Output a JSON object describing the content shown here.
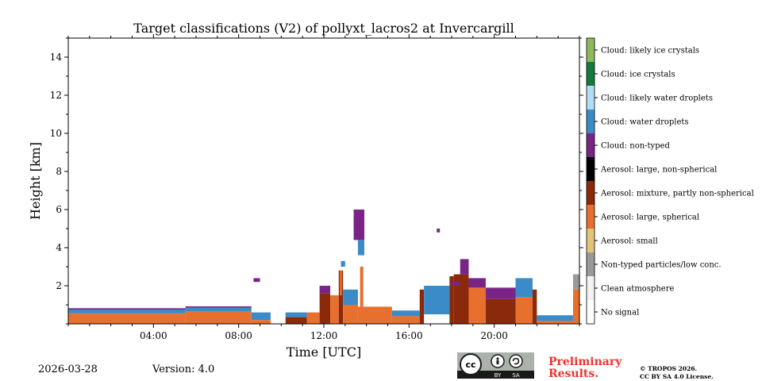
{
  "chart_data": {
    "type": "heatmap",
    "title": "Target classifications (V2) of pollyxt_lacros2 at Invercargill",
    "xlabel": "Time [UTC]",
    "ylabel": "Height [km]",
    "xlim_hours": [
      0,
      24
    ],
    "ylim_km": [
      0,
      15
    ],
    "x_ticks": [
      {
        "value": 4,
        "label": "04:00"
      },
      {
        "value": 8,
        "label": "08:00"
      },
      {
        "value": 12,
        "label": "12:00"
      },
      {
        "value": 16,
        "label": "16:00"
      },
      {
        "value": 20,
        "label": "20:00"
      }
    ],
    "y_ticks": [
      {
        "value": 2,
        "label": "2"
      },
      {
        "value": 4,
        "label": "4"
      },
      {
        "value": 6,
        "label": "6"
      },
      {
        "value": 8,
        "label": "8"
      },
      {
        "value": 10,
        "label": "10"
      },
      {
        "value": 12,
        "label": "12"
      },
      {
        "value": 14,
        "label": "14"
      }
    ],
    "classes": [
      {
        "label": "No signal",
        "color": "#ffffff"
      },
      {
        "label": "Clean atmosphere",
        "color": "#f2f2f2"
      },
      {
        "label": "Non-typed particles/low conc.",
        "color": "#9a9a9a"
      },
      {
        "label": "Aerosol: small",
        "color": "#e0c47a"
      },
      {
        "label": "Aerosol: large, spherical",
        "color": "#e8702e"
      },
      {
        "label": "Aerosol: mixture, partly non-spherical",
        "color": "#8a2a0a"
      },
      {
        "label": "Aerosol: large, non-spherical",
        "color": "#000000"
      },
      {
        "label": "Cloud: non-typed",
        "color": "#7a2488"
      },
      {
        "label": "Cloud: water droplets",
        "color": "#3c8bc9"
      },
      {
        "label": "Cloud: likely water droplets",
        "color": "#b3dcf5"
      },
      {
        "label": "Cloud: ice crystals",
        "color": "#127a3c"
      },
      {
        "label": "Cloud: likely ice crystals",
        "color": "#8cba5c"
      }
    ],
    "regions": [
      {
        "cls": 4,
        "t0": 0.0,
        "t1": 5.5,
        "h0": 0.0,
        "h1": 0.55
      },
      {
        "cls": 8,
        "t0": 0.0,
        "t1": 5.5,
        "h0": 0.55,
        "h1": 0.75
      },
      {
        "cls": 7,
        "t0": 0.0,
        "t1": 5.5,
        "h0": 0.75,
        "h1": 0.82
      },
      {
        "cls": 4,
        "t0": 5.5,
        "t1": 8.6,
        "h0": 0.0,
        "h1": 0.65
      },
      {
        "cls": 8,
        "t0": 5.5,
        "t1": 8.6,
        "h0": 0.65,
        "h1": 0.85
      },
      {
        "cls": 7,
        "t0": 5.5,
        "t1": 8.6,
        "h0": 0.85,
        "h1": 0.92
      },
      {
        "cls": 8,
        "t0": 8.6,
        "t1": 9.5,
        "h0": 0.2,
        "h1": 0.6
      },
      {
        "cls": 4,
        "t0": 8.6,
        "t1": 9.5,
        "h0": 0.0,
        "h1": 0.2
      },
      {
        "cls": 5,
        "t0": 10.2,
        "t1": 11.2,
        "h0": 0.0,
        "h1": 0.35
      },
      {
        "cls": 8,
        "t0": 10.2,
        "t1": 11.2,
        "h0": 0.35,
        "h1": 0.6
      },
      {
        "cls": 4,
        "t0": 11.2,
        "t1": 11.8,
        "h0": 0.0,
        "h1": 0.6
      },
      {
        "cls": 5,
        "t0": 11.8,
        "t1": 12.3,
        "h0": 0.0,
        "h1": 1.6
      },
      {
        "cls": 7,
        "t0": 11.8,
        "t1": 12.3,
        "h0": 1.6,
        "h1": 2.0
      },
      {
        "cls": 4,
        "t0": 12.3,
        "t1": 12.7,
        "h0": 0.0,
        "h1": 1.5
      },
      {
        "cls": 5,
        "t0": 12.7,
        "t1": 12.9,
        "h0": 0.0,
        "h1": 2.8
      },
      {
        "cls": 4,
        "t0": 12.9,
        "t1": 13.6,
        "h0": 0.0,
        "h1": 1.0
      },
      {
        "cls": 8,
        "t0": 12.9,
        "t1": 13.6,
        "h0": 1.0,
        "h1": 1.8
      },
      {
        "cls": 7,
        "t0": 13.4,
        "t1": 13.9,
        "h0": 4.4,
        "h1": 6.0
      },
      {
        "cls": 8,
        "t0": 13.6,
        "t1": 13.9,
        "h0": 3.6,
        "h1": 4.4
      },
      {
        "cls": 4,
        "t0": 13.6,
        "t1": 15.2,
        "h0": 0.0,
        "h1": 0.9
      },
      {
        "cls": 4,
        "t0": 13.7,
        "t1": 13.85,
        "h0": 0.9,
        "h1": 3.0
      },
      {
        "cls": 8,
        "t0": 15.2,
        "t1": 16.5,
        "h0": 0.4,
        "h1": 0.7
      },
      {
        "cls": 4,
        "t0": 15.2,
        "t1": 16.5,
        "h0": 0.0,
        "h1": 0.4
      },
      {
        "cls": 5,
        "t0": 16.5,
        "t1": 16.7,
        "h0": 0.0,
        "h1": 1.8
      },
      {
        "cls": 8,
        "t0": 16.7,
        "t1": 17.9,
        "h0": 0.5,
        "h1": 2.0
      },
      {
        "cls": 5,
        "t0": 17.9,
        "t1": 18.1,
        "h0": 0.0,
        "h1": 2.5
      },
      {
        "cls": 5,
        "t0": 18.1,
        "t1": 18.8,
        "h0": 0.0,
        "h1": 2.6
      },
      {
        "cls": 7,
        "t0": 18.4,
        "t1": 18.8,
        "h0": 2.6,
        "h1": 3.4
      },
      {
        "cls": 4,
        "t0": 18.8,
        "t1": 19.6,
        "h0": 0.0,
        "h1": 1.9
      },
      {
        "cls": 7,
        "t0": 18.8,
        "t1": 19.6,
        "h0": 1.9,
        "h1": 2.4
      },
      {
        "cls": 5,
        "t0": 19.6,
        "t1": 21.0,
        "h0": 0.0,
        "h1": 1.3
      },
      {
        "cls": 7,
        "t0": 19.6,
        "t1": 21.0,
        "h0": 1.3,
        "h1": 1.9
      },
      {
        "cls": 4,
        "t0": 21.0,
        "t1": 21.8,
        "h0": 0.0,
        "h1": 1.4
      },
      {
        "cls": 8,
        "t0": 21.0,
        "t1": 21.8,
        "h0": 1.4,
        "h1": 2.4
      },
      {
        "cls": 5,
        "t0": 21.8,
        "t1": 22.0,
        "h0": 0.0,
        "h1": 1.8
      },
      {
        "cls": 4,
        "t0": 22.0,
        "t1": 23.7,
        "h0": 0.0,
        "h1": 0.15
      },
      {
        "cls": 8,
        "t0": 22.0,
        "t1": 23.7,
        "h0": 0.15,
        "h1": 0.45
      },
      {
        "cls": 4,
        "t0": 23.7,
        "t1": 24.0,
        "h0": 0.0,
        "h1": 1.8
      },
      {
        "cls": 2,
        "t0": 23.7,
        "t1": 24.0,
        "h0": 1.8,
        "h1": 2.6
      },
      {
        "cls": 7,
        "t0": 8.7,
        "t1": 9.0,
        "h0": 2.2,
        "h1": 2.4
      },
      {
        "cls": 7,
        "t0": 13.4,
        "t1": 13.8,
        "h0": 5.0,
        "h1": 5.6
      },
      {
        "cls": 7,
        "t0": 18.0,
        "t1": 18.4,
        "h0": 2.0,
        "h1": 2.2
      },
      {
        "cls": 7,
        "t0": 17.3,
        "t1": 17.45,
        "h0": 4.8,
        "h1": 5.0
      },
      {
        "cls": 8,
        "t0": 13.6,
        "t1": 13.75,
        "h0": 4.2,
        "h1": 4.35
      },
      {
        "cls": 8,
        "t0": 12.8,
        "t1": 13.0,
        "h0": 3.0,
        "h1": 3.3
      },
      {
        "cls": 4,
        "t0": 12.75,
        "t1": 12.85,
        "h0": 1.5,
        "h1": 2.8
      }
    ]
  },
  "footer": {
    "date": "2026-03-28",
    "version": "Version: 4.0",
    "preliminary_line1": "Preliminary",
    "preliminary_line2": "Results.",
    "copyright_line1": "© TROPOS 2026.",
    "copyright_line2": "CC BY SA 4.0 License.",
    "cc_text": "cc",
    "cc_by": "BY",
    "cc_sa": "SA"
  }
}
